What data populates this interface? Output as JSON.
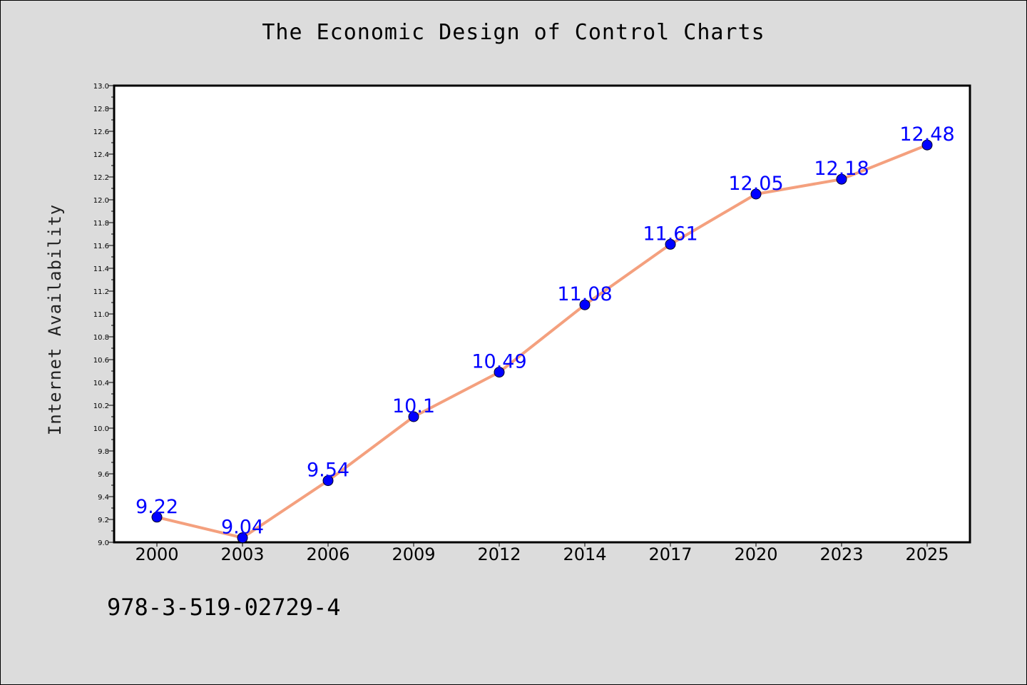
{
  "page": {
    "background": "#dcdcdc",
    "footer_text": "978-3-519-02729-4"
  },
  "chart_data": {
    "type": "line",
    "title": "The Economic Design of Control Charts",
    "xlabel": "",
    "ylabel": "Internet Availability",
    "categories": [
      "2000",
      "2003",
      "2006",
      "2009",
      "2012",
      "2014",
      "2017",
      "2020",
      "2023",
      "2025"
    ],
    "values": [
      9.22,
      9.04,
      9.54,
      10.1,
      10.49,
      11.08,
      11.61,
      12.05,
      12.18,
      12.48
    ],
    "data_labels": [
      "9.22",
      "9.04",
      "9.54",
      "10.1",
      "10.49",
      "11.08",
      "11.61",
      "12.05",
      "12.18",
      "12.48"
    ],
    "ylim": [
      9.0,
      13.0
    ],
    "y_ticks": [
      "9.0",
      "9.2",
      "9.4",
      "9.6",
      "9.8",
      "10.0",
      "10.2",
      "10.4",
      "10.6",
      "10.8",
      "11.0",
      "11.2",
      "11.4",
      "11.6",
      "11.8",
      "12.0",
      "12.2",
      "12.4",
      "12.6",
      "12.8",
      "13.0"
    ],
    "grid": false,
    "line_color": "#f4a07e",
    "marker_color": "#0000ff",
    "label_color": "#0000ff",
    "plot_background": "#ffffff"
  }
}
